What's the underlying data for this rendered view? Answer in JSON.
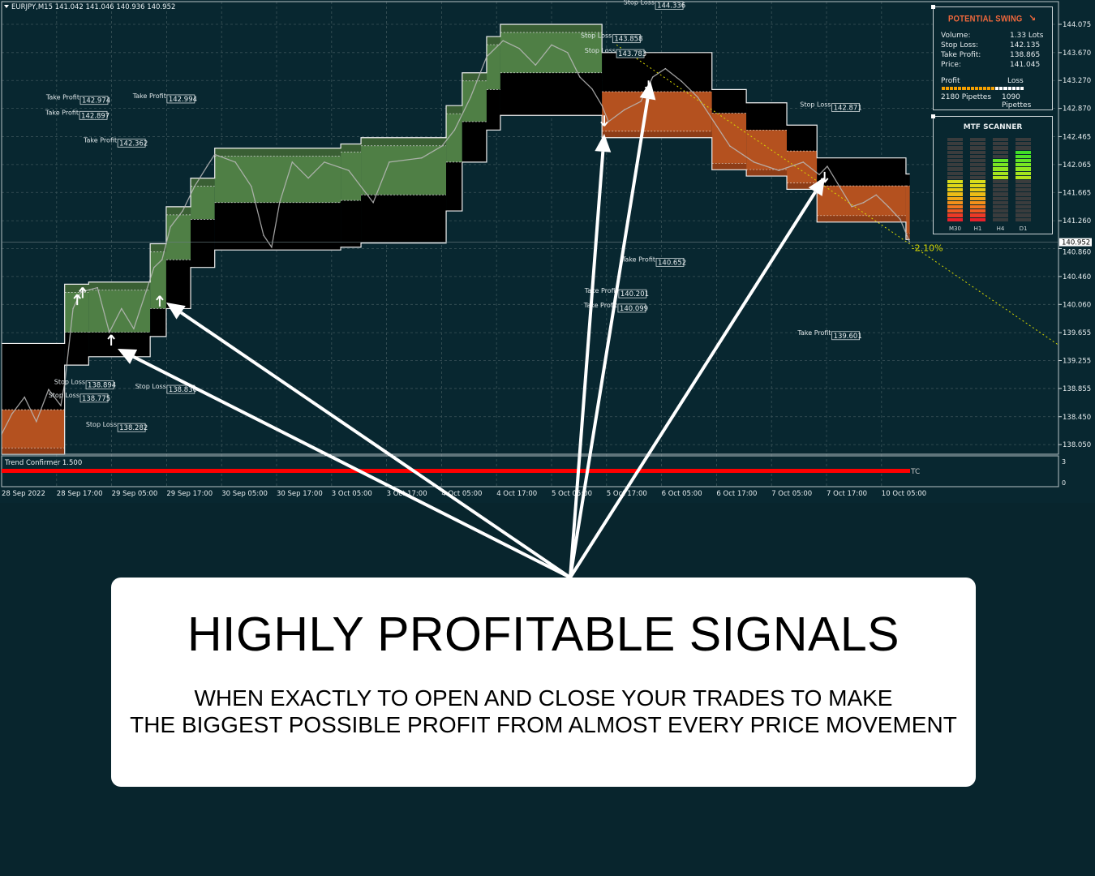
{
  "header": {
    "symbol_info": "EURJPY,M15  141.042 141.046 140.936 140.952"
  },
  "potential_swing": {
    "title": "POTENTIAL SWING",
    "direction_icon": "arrow-down-right",
    "rows": [
      {
        "label": "Volume:",
        "value": "1.33 Lots"
      },
      {
        "label": "Stop Loss:",
        "value": "142.135"
      },
      {
        "label": "Take Profit:",
        "value": "138.865"
      },
      {
        "label": "Price:",
        "value": "141.045"
      }
    ],
    "profit_label": "Profit",
    "loss_label": "Loss",
    "profit_fraction": 0.667,
    "profit_pips": "2180 Pipettes",
    "loss_pips": "1090 Pipettes",
    "colors": {
      "profit": "#f5a000",
      "loss": "#ffffff"
    }
  },
  "mtf_scanner": {
    "title": "MTF SCANNER",
    "segments_per_half": 10,
    "columns": [
      {
        "label": "M30",
        "level": -10
      },
      {
        "label": "H1",
        "level": -10
      },
      {
        "label": "H4",
        "level": 5
      },
      {
        "label": "D1",
        "level": 7
      }
    ]
  },
  "indicator": {
    "name": "Trend Confirmer 1.500",
    "tag": "TC",
    "ticks": [
      "3",
      "0"
    ],
    "color": "#ff0000"
  },
  "callout": {
    "heading": "HIGHLY PROFITABLE SIGNALS",
    "line1": "WHEN EXACTLY TO OPEN AND CLOSE YOUR TRADES TO MAKE",
    "line2": "THE BIGGEST POSSIBLE PROFIT FROM ALMOST EVERY PRICE MOVEMENT"
  },
  "chart_data": {
    "type": "line",
    "title": "",
    "symbol": "EURJPY",
    "timeframe": "M15",
    "x_tick_labels": [
      "28 Sep 2022",
      "28 Sep 17:00",
      "29 Sep 05:00",
      "29 Sep 17:00",
      "30 Sep 05:00",
      "30 Sep 17:00",
      "3 Oct 05:00",
      "3 Oct 17:00",
      "4 Oct 05:00",
      "4 Oct 17:00",
      "5 Oct 05:00",
      "5 Oct 17:00",
      "6 Oct 05:00",
      "6 Oct 17:00",
      "7 Oct 05:00",
      "7 Oct 17:00",
      "10 Oct 05:00"
    ],
    "y_ticks": [
      "144.075",
      "143.670",
      "143.270",
      "142.870",
      "142.465",
      "142.065",
      "141.665",
      "141.260",
      "140.860",
      "140.460",
      "140.060",
      "139.655",
      "139.255",
      "138.855",
      "138.450",
      "138.050"
    ],
    "ylim": [
      137.9,
      144.4
    ],
    "current_price": "140.952",
    "grid": true,
    "colors": {
      "bull": "#4f7f45",
      "bear": "#b4511f",
      "envelope": "#000000",
      "price": "#b8b8b8",
      "trendline": "#d8d800"
    },
    "price_series": [
      [
        "28 Sep 05:00",
        138.2
      ],
      [
        "28 Sep 07:15",
        138.49
      ],
      [
        "28 Sep 10:00",
        138.73
      ],
      [
        "28 Sep 12:35",
        138.38
      ],
      [
        "28 Sep 15:15",
        138.84
      ],
      [
        "28 Sep 17:55",
        138.61
      ],
      [
        "28 Sep 18:50",
        138.96
      ],
      [
        "28 Sep 20:35",
        140.0
      ],
      [
        "28 Sep 22:20",
        140.24
      ],
      [
        "29 Sep 01:55",
        140.3
      ],
      [
        "29 Sep 04:30",
        139.66
      ],
      [
        "29 Sep 07:10",
        140.0
      ],
      [
        "29 Sep 09:50",
        139.71
      ],
      [
        "29 Sep 12:30",
        140.24
      ],
      [
        "29 Sep 14:15",
        140.59
      ],
      [
        "29 Sep 16:00",
        140.7
      ],
      [
        "29 Sep 17:50",
        141.17
      ],
      [
        "29 Sep 20:30",
        141.4
      ],
      [
        "29 Sep 23:05",
        141.75
      ],
      [
        "30 Sep 01:50",
        142.04
      ],
      [
        "30 Sep 03:30",
        142.21
      ],
      [
        "30 Sep 08:00",
        142.1
      ],
      [
        "30 Sep 11:30",
        141.75
      ],
      [
        "30 Sep 14:10",
        141.05
      ],
      [
        "30 Sep 15:55",
        140.88
      ],
      [
        "30 Sep 17:40",
        141.52
      ],
      [
        "30 Sep 20:25",
        142.1
      ],
      [
        "30 Sep 23:55",
        141.87
      ],
      [
        "3 Oct 03:25",
        142.1
      ],
      [
        "3 Oct 08:45",
        141.98
      ],
      [
        "3 Oct 14:05",
        141.52
      ],
      [
        "3 Oct 17:35",
        142.1
      ],
      [
        "4 Oct 00:40",
        142.16
      ],
      [
        "4 Oct 05:05",
        142.33
      ],
      [
        "4 Oct 07:50",
        142.56
      ],
      [
        "4 Oct 11:20",
        143.03
      ],
      [
        "4 Oct 14:50",
        143.61
      ],
      [
        "4 Oct 18:25",
        143.84
      ],
      [
        "4 Oct 21:55",
        143.73
      ],
      [
        "5 Oct 01:30",
        143.49
      ],
      [
        "5 Oct 05:00",
        143.78
      ],
      [
        "5 Oct 08:30",
        143.67
      ],
      [
        "5 Oct 11:10",
        143.32
      ],
      [
        "5 Oct 13:50",
        143.15
      ],
      [
        "5 Oct 16:00",
        142.91
      ],
      [
        "5 Oct 17:25",
        142.68
      ],
      [
        "5 Oct 20:55",
        142.85
      ],
      [
        "6 Oct 00:30",
        142.97
      ],
      [
        "6 Oct 03:05",
        143.32
      ],
      [
        "6 Oct 05:50",
        143.44
      ],
      [
        "6 Oct 09:20",
        143.26
      ],
      [
        "6 Oct 12:55",
        143.03
      ],
      [
        "6 Oct 16:25",
        142.68
      ],
      [
        "6 Oct 19:55",
        142.33
      ],
      [
        "7 Oct 01:10",
        142.1
      ],
      [
        "7 Oct 06:35",
        141.98
      ],
      [
        "7 Oct 11:55",
        142.1
      ],
      [
        "7 Oct 15:25",
        141.92
      ],
      [
        "7 Oct 17:10",
        142.04
      ],
      [
        "7 Oct 19:50",
        141.75
      ],
      [
        "7 Oct 22:30",
        141.46
      ],
      [
        "10 Oct 01:05",
        141.52
      ],
      [
        "10 Oct 03:50",
        141.63
      ],
      [
        "10 Oct 06:30",
        141.46
      ],
      [
        "10 Oct 09:05",
        141.28
      ],
      [
        "10 Oct 11:10",
        140.95
      ]
    ],
    "bands": [
      {
        "from": "28 Sep 05:00",
        "to": "28 Sep 18:45",
        "mode": "bear",
        "upper": 139.5,
        "mid": 138.55,
        "lower": 137.91
      },
      {
        "from": "28 Sep 18:45",
        "to": "29 Sep 00:00",
        "mode": "bull",
        "upper": 140.35,
        "mid": 139.66,
        "lower": 139.19
      },
      {
        "from": "29 Sep 00:00",
        "to": "29 Sep 13:25",
        "mode": "bull",
        "upper": 140.38,
        "mid": 139.66,
        "lower": 139.31
      },
      {
        "from": "29 Sep 13:25",
        "to": "29 Sep 16:55",
        "mode": "bull",
        "upper": 140.93,
        "mid": 140.0,
        "lower": 139.6
      },
      {
        "from": "29 Sep 16:55",
        "to": "29 Sep 22:15",
        "mode": "bull",
        "upper": 141.46,
        "mid": 140.7,
        "lower": 140.0
      },
      {
        "from": "29 Sep 22:15",
        "to": "30 Sep 03:30",
        "mode": "bull",
        "upper": 141.87,
        "mid": 141.28,
        "lower": 140.59
      },
      {
        "from": "30 Sep 03:30",
        "to": "3 Oct 07:00",
        "mode": "bull",
        "upper": 142.3,
        "mid": 141.52,
        "lower": 140.84
      },
      {
        "from": "3 Oct 07:00",
        "to": "3 Oct 11:25",
        "mode": "bull",
        "upper": 142.36,
        "mid": 141.55,
        "lower": 140.88
      },
      {
        "from": "3 Oct 11:25",
        "to": "4 Oct 06:00",
        "mode": "bull",
        "upper": 142.45,
        "mid": 141.63,
        "lower": 140.94
      },
      {
        "from": "4 Oct 06:00",
        "to": "4 Oct 09:30",
        "mode": "bull",
        "upper": 142.91,
        "mid": 142.1,
        "lower": 141.4
      },
      {
        "from": "4 Oct 09:30",
        "to": "4 Oct 14:50",
        "mode": "bull",
        "upper": 143.38,
        "mid": 142.68,
        "lower": 142.1
      },
      {
        "from": "4 Oct 14:50",
        "to": "4 Oct 17:50",
        "mode": "bull",
        "upper": 143.9,
        "mid": 143.14,
        "lower": 142.56
      },
      {
        "from": "4 Oct 17:50",
        "to": "5 Oct 16:00",
        "mode": "bull",
        "upper": 144.075,
        "mid": 143.38,
        "lower": 142.77
      },
      {
        "from": "5 Oct 16:00",
        "to": "6 Oct 16:00",
        "mode": "bear",
        "upper": 143.67,
        "mid": 143.11,
        "lower": 142.45
      },
      {
        "from": "6 Oct 16:00",
        "to": "6 Oct 23:30",
        "mode": "bear",
        "upper": 143.14,
        "mid": 142.8,
        "lower": 141.99
      },
      {
        "from": "6 Oct 23:30",
        "to": "7 Oct 08:20",
        "mode": "bear",
        "upper": 142.95,
        "mid": 142.56,
        "lower": 141.9
      },
      {
        "from": "7 Oct 08:20",
        "to": "7 Oct 14:55",
        "mode": "bear",
        "upper": 142.63,
        "mid": 142.26,
        "lower": 141.71
      },
      {
        "from": "7 Oct 14:55",
        "to": "10 Oct 10:20",
        "mode": "bear",
        "upper": 142.16,
        "mid": 141.76,
        "lower": 141.24
      },
      {
        "from": "10 Oct 10:20",
        "to": "10 Oct 11:10",
        "mode": "bear",
        "upper": 141.93,
        "mid": 141.76,
        "lower": 140.99
      }
    ],
    "signals": [
      {
        "type": "buy",
        "time": "28 Sep 21:30",
        "price": 140.12
      },
      {
        "type": "buy",
        "time": "28 Sep 22:40",
        "price": 140.22
      },
      {
        "type": "buy",
        "time": "29 Sep 04:55",
        "price": 139.54
      },
      {
        "type": "buy",
        "time": "29 Sep 15:30",
        "price": 140.1
      },
      {
        "type": "sell",
        "time": "5 Oct 16:30",
        "price": 142.7
      },
      {
        "type": "sell",
        "time": "6 Oct 02:10",
        "price": 143.2
      },
      {
        "type": "sell",
        "time": "7 Oct 16:35",
        "price": 141.89
      }
    ],
    "levels": [
      {
        "label": "Take Profit",
        "value": "142.974",
        "time": "28 Sep 22:10"
      },
      {
        "label": "Take Profit",
        "value": "142.897",
        "time": "28 Sep 22:00"
      },
      {
        "label": "Take Profit",
        "value": "142.994",
        "time": "29 Sep 17:05"
      },
      {
        "label": "Take Profit",
        "value": "142.362",
        "time": "29 Sep 06:20"
      },
      {
        "label": "Stop Loss",
        "value": "144.336",
        "time": "6 Oct 03:40"
      },
      {
        "label": "Stop Loss",
        "value": "143.858",
        "time": "5 Oct 18:20"
      },
      {
        "label": "Stop Loss",
        "value": "143.783",
        "time": "5 Oct 19:10"
      },
      {
        "label": "Stop Loss",
        "value": "142.871",
        "time": "7 Oct 18:10"
      },
      {
        "label": "Take Profit",
        "value": "140.652",
        "time": "6 Oct 03:50"
      },
      {
        "label": "Take Profit",
        "value": "140.201",
        "time": "5 Oct 19:40"
      },
      {
        "label": "Take Profit",
        "value": "140.099",
        "time": "5 Oct 19:30"
      },
      {
        "label": "Take Profit",
        "value": "139.601",
        "time": "7 Oct 18:10"
      },
      {
        "label": "Stop Loss",
        "value": "138.894",
        "time": "28 Sep 23:25"
      },
      {
        "label": "Stop Loss",
        "value": "138.775",
        "time": "28 Sep 22:10"
      },
      {
        "label": "Stop Loss",
        "value": "138.830",
        "time": "29 Sep 17:05"
      },
      {
        "label": "Stop Loss",
        "value": "138.282",
        "time": "29 Sep 06:20"
      }
    ],
    "trendline": {
      "from": [
        "5 Oct 19:10",
        143.78
      ],
      "to": [
        "11 Oct 19:35",
        139.48
      ],
      "label": "-2.10%",
      "label_at": [
        "10 Oct 11:10",
        140.86
      ]
    }
  }
}
